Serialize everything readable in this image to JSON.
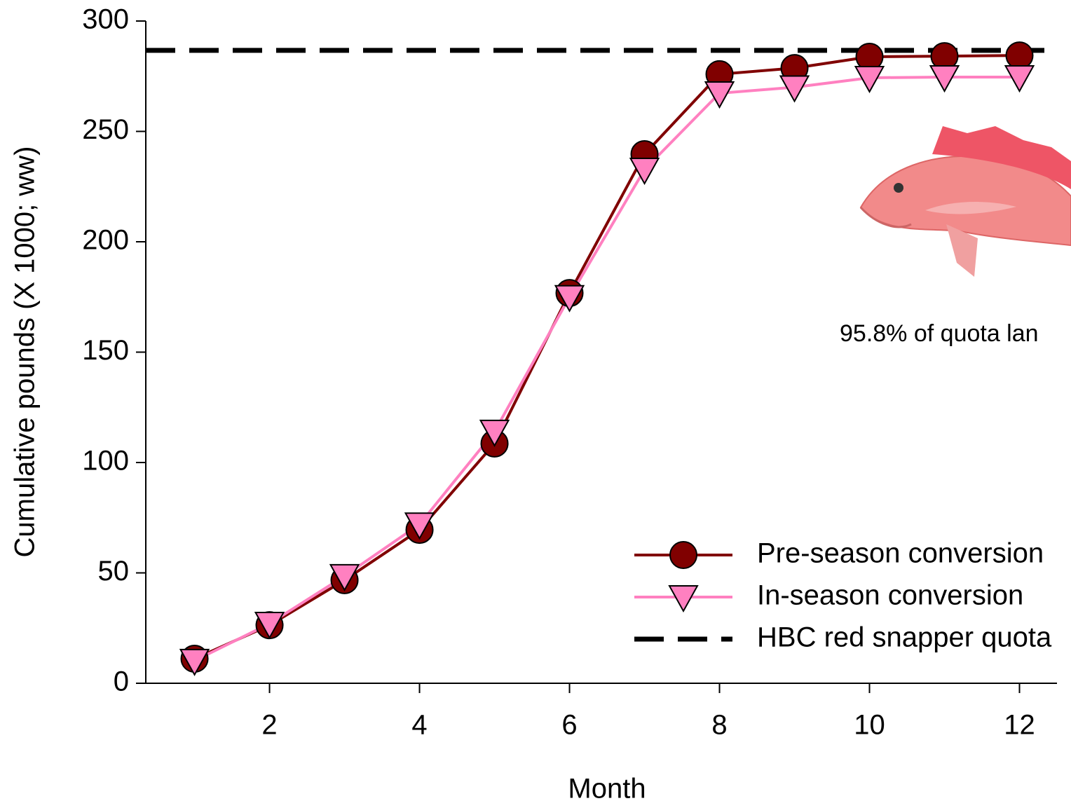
{
  "chart_data": {
    "type": "line",
    "y_label": "Cumulative pounds (X 1000; ww)",
    "x_label": "Month",
    "annotation": "95.8% of quota lan",
    "x": [
      1,
      2,
      3,
      4,
      5,
      6,
      7,
      8,
      9,
      10,
      11,
      12
    ],
    "series": [
      {
        "name": "Pre-season conversion",
        "color": "#800000",
        "marker": "circle",
        "values": [
          11.1,
          26.3,
          46.7,
          69.5,
          108.6,
          176.8,
          239.7,
          275.9,
          278.7,
          283.8,
          284.1,
          284.4
        ]
      },
      {
        "name": "In-season conversion",
        "color": "#ff80c0",
        "marker": "triangle-down",
        "values": [
          10.2,
          27,
          48.6,
          72,
          114,
          175,
          232.7,
          267.3,
          270,
          274.3,
          274.6,
          274.6
        ]
      }
    ],
    "reference_lines": [
      {
        "name": "HBC red snapper quota",
        "value": 286.7,
        "color": "#000000"
      }
    ],
    "xlim": [
      0.35,
      12.5
    ],
    "ylim": [
      0,
      300
    ],
    "xticks": [
      2,
      4,
      6,
      8,
      10,
      12
    ],
    "yticks": [
      0,
      50,
      100,
      150,
      200,
      250,
      300
    ],
    "grid": false,
    "legend": "lower right"
  }
}
